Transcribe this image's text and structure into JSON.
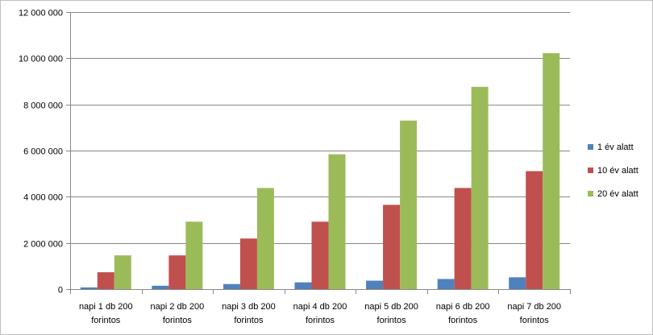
{
  "chart_data": {
    "type": "bar",
    "title": "",
    "xlabel": "",
    "ylabel": "",
    "ylim": [
      0,
      12000000
    ],
    "yticks": [
      0,
      2000000,
      4000000,
      6000000,
      8000000,
      10000000,
      12000000
    ],
    "ytick_labels": [
      "0",
      "2 000 000",
      "4 000 000",
      "6 000 000",
      "8 000 000",
      "10 000 000",
      "12 000 000"
    ],
    "grid": true,
    "legend_position": "right",
    "categories": [
      [
        "napi 1 db 200",
        "forintos"
      ],
      [
        "napi 2 db 200",
        "forintos"
      ],
      [
        "napi 3 db 200",
        "forintos"
      ],
      [
        "napi 4 db 200",
        "forintos"
      ],
      [
        "napi 5 db 200",
        "forintos"
      ],
      [
        "napi 6 db 200",
        "forintos"
      ],
      [
        "napi 7 db 200",
        "forintos"
      ]
    ],
    "series": [
      {
        "name": "1 év alatt",
        "color": "#4f81bd",
        "values": [
          73000,
          146000,
          219000,
          292000,
          365000,
          438000,
          511000
        ]
      },
      {
        "name": "10 év alatt",
        "color": "#c0504d",
        "values": [
          730000,
          1460000,
          2190000,
          2920000,
          3650000,
          4380000,
          5110000
        ]
      },
      {
        "name": "20 év alatt",
        "color": "#9bbb59",
        "values": [
          1460000,
          2920000,
          4380000,
          5840000,
          7300000,
          8760000,
          10220000
        ]
      }
    ]
  }
}
